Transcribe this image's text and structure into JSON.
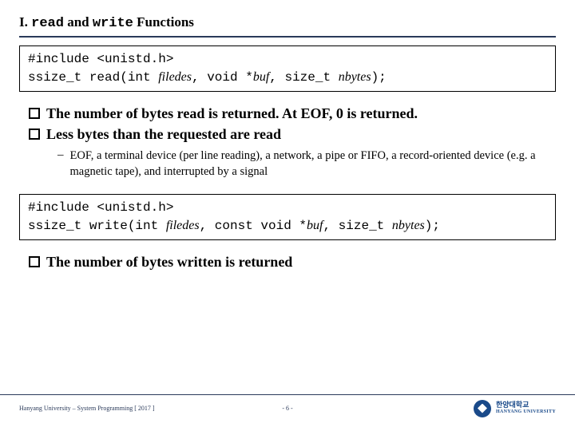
{
  "title": {
    "prefix": "I. ",
    "mono1": "read",
    "mid": " and ",
    "mono2": "write",
    "suffix": " Functions"
  },
  "code1": {
    "line1": "#include <unistd.h>",
    "line2a": "ssize_t read(int ",
    "line2b": "filedes",
    "line2c": ", void *",
    "line2d": "buf",
    "line2e": ", size_t  ",
    "line2f": "nbytes",
    "line2g": ");"
  },
  "bullets1": [
    "The number of bytes read is returned. At EOF, 0 is returned.",
    "Less bytes than the requested are read"
  ],
  "sub1": "EOF, a terminal device (per line reading), a network, a pipe or FIFO, a record-oriented device (e.g. a magnetic tape), and interrupted by a signal",
  "code2": {
    "line1": "#include <unistd.h>",
    "line2a": "ssize_t write(int ",
    "line2b": "filedes",
    "line2c": ", const void *",
    "line2d": "buf",
    "line2e": ", size_t ",
    "line2f": "nbytes",
    "line2g": ");"
  },
  "bullets2": [
    "The number of bytes written is returned"
  ],
  "footer": {
    "left": "Hanyang University – System Programming  [ 2017 ]",
    "center": "- 6 -",
    "uni_ko": "한양대학교",
    "uni_en": "HANYANG UNIVERSITY"
  },
  "colors": {
    "rule": "#2a3a5a",
    "logo": "#1a4a8a",
    "text": "#000000",
    "bg": "#ffffff"
  }
}
